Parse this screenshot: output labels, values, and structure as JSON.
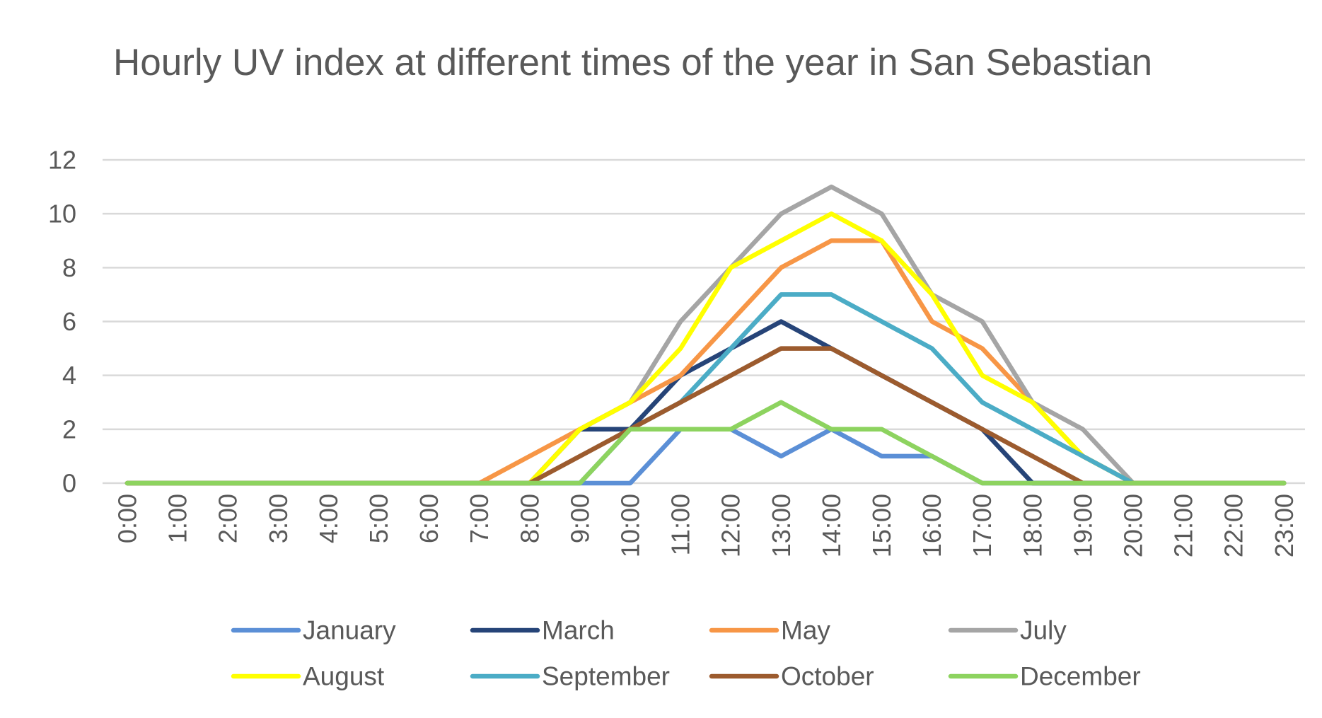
{
  "chart_data": {
    "type": "line",
    "title": "Hourly UV index at different times of the year in San Sebastian",
    "xlabel": "",
    "ylabel": "",
    "ylim": [
      0,
      12
    ],
    "yticks": [
      0,
      2,
      4,
      6,
      8,
      10,
      12
    ],
    "grid": true,
    "legend_position": "bottom",
    "x": [
      "0:00",
      "1:00",
      "2:00",
      "3:00",
      "4:00",
      "5:00",
      "6:00",
      "7:00",
      "8:00",
      "9:00",
      "10:00",
      "11:00",
      "12:00",
      "13:00",
      "14:00",
      "15:00",
      "16:00",
      "17:00",
      "18:00",
      "19:00",
      "20:00",
      "21:00",
      "22:00",
      "23:00"
    ],
    "series": [
      {
        "name": "January",
        "color": "#5B8FD6",
        "values": [
          0,
          0,
          0,
          0,
          0,
          0,
          0,
          0,
          0,
          0,
          0,
          2,
          2,
          1,
          2,
          1,
          1,
          0,
          0,
          0,
          0,
          0,
          0,
          0
        ]
      },
      {
        "name": "March",
        "color": "#264478",
        "values": [
          0,
          0,
          0,
          0,
          0,
          0,
          0,
          0,
          0,
          2,
          2,
          4,
          5,
          6,
          5,
          4,
          3,
          2,
          0,
          0,
          0,
          0,
          0,
          0
        ]
      },
      {
        "name": "May",
        "color": "#F79646",
        "values": [
          0,
          0,
          0,
          0,
          0,
          0,
          0,
          0,
          1,
          2,
          3,
          4,
          6,
          8,
          9,
          9,
          6,
          5,
          3,
          1,
          0,
          0,
          0,
          0
        ]
      },
      {
        "name": "July",
        "color": "#A5A5A5",
        "values": [
          0,
          0,
          0,
          0,
          0,
          0,
          0,
          0,
          0,
          2,
          3,
          6,
          8,
          10,
          11,
          10,
          7,
          6,
          3,
          2,
          0,
          0,
          0,
          0
        ]
      },
      {
        "name": "August",
        "color": "#FFFF00",
        "values": [
          0,
          0,
          0,
          0,
          0,
          0,
          0,
          0,
          0,
          2,
          3,
          5,
          8,
          9,
          10,
          9,
          7,
          4,
          3,
          1,
          0,
          0,
          0,
          0
        ]
      },
      {
        "name": "September",
        "color": "#4BACC6",
        "values": [
          0,
          0,
          0,
          0,
          0,
          0,
          0,
          0,
          0,
          0,
          2,
          3,
          5,
          7,
          7,
          6,
          5,
          3,
          2,
          1,
          0,
          0,
          0,
          0
        ]
      },
      {
        "name": "October",
        "color": "#9C5B2E",
        "values": [
          0,
          0,
          0,
          0,
          0,
          0,
          0,
          0,
          0,
          1,
          2,
          3,
          4,
          5,
          5,
          4,
          3,
          2,
          1,
          0,
          0,
          0,
          0,
          0
        ]
      },
      {
        "name": "December",
        "color": "#8DD35F",
        "values": [
          0,
          0,
          0,
          0,
          0,
          0,
          0,
          0,
          0,
          0,
          2,
          2,
          2,
          3,
          2,
          2,
          1,
          0,
          0,
          0,
          0,
          0,
          0,
          0
        ]
      }
    ]
  }
}
